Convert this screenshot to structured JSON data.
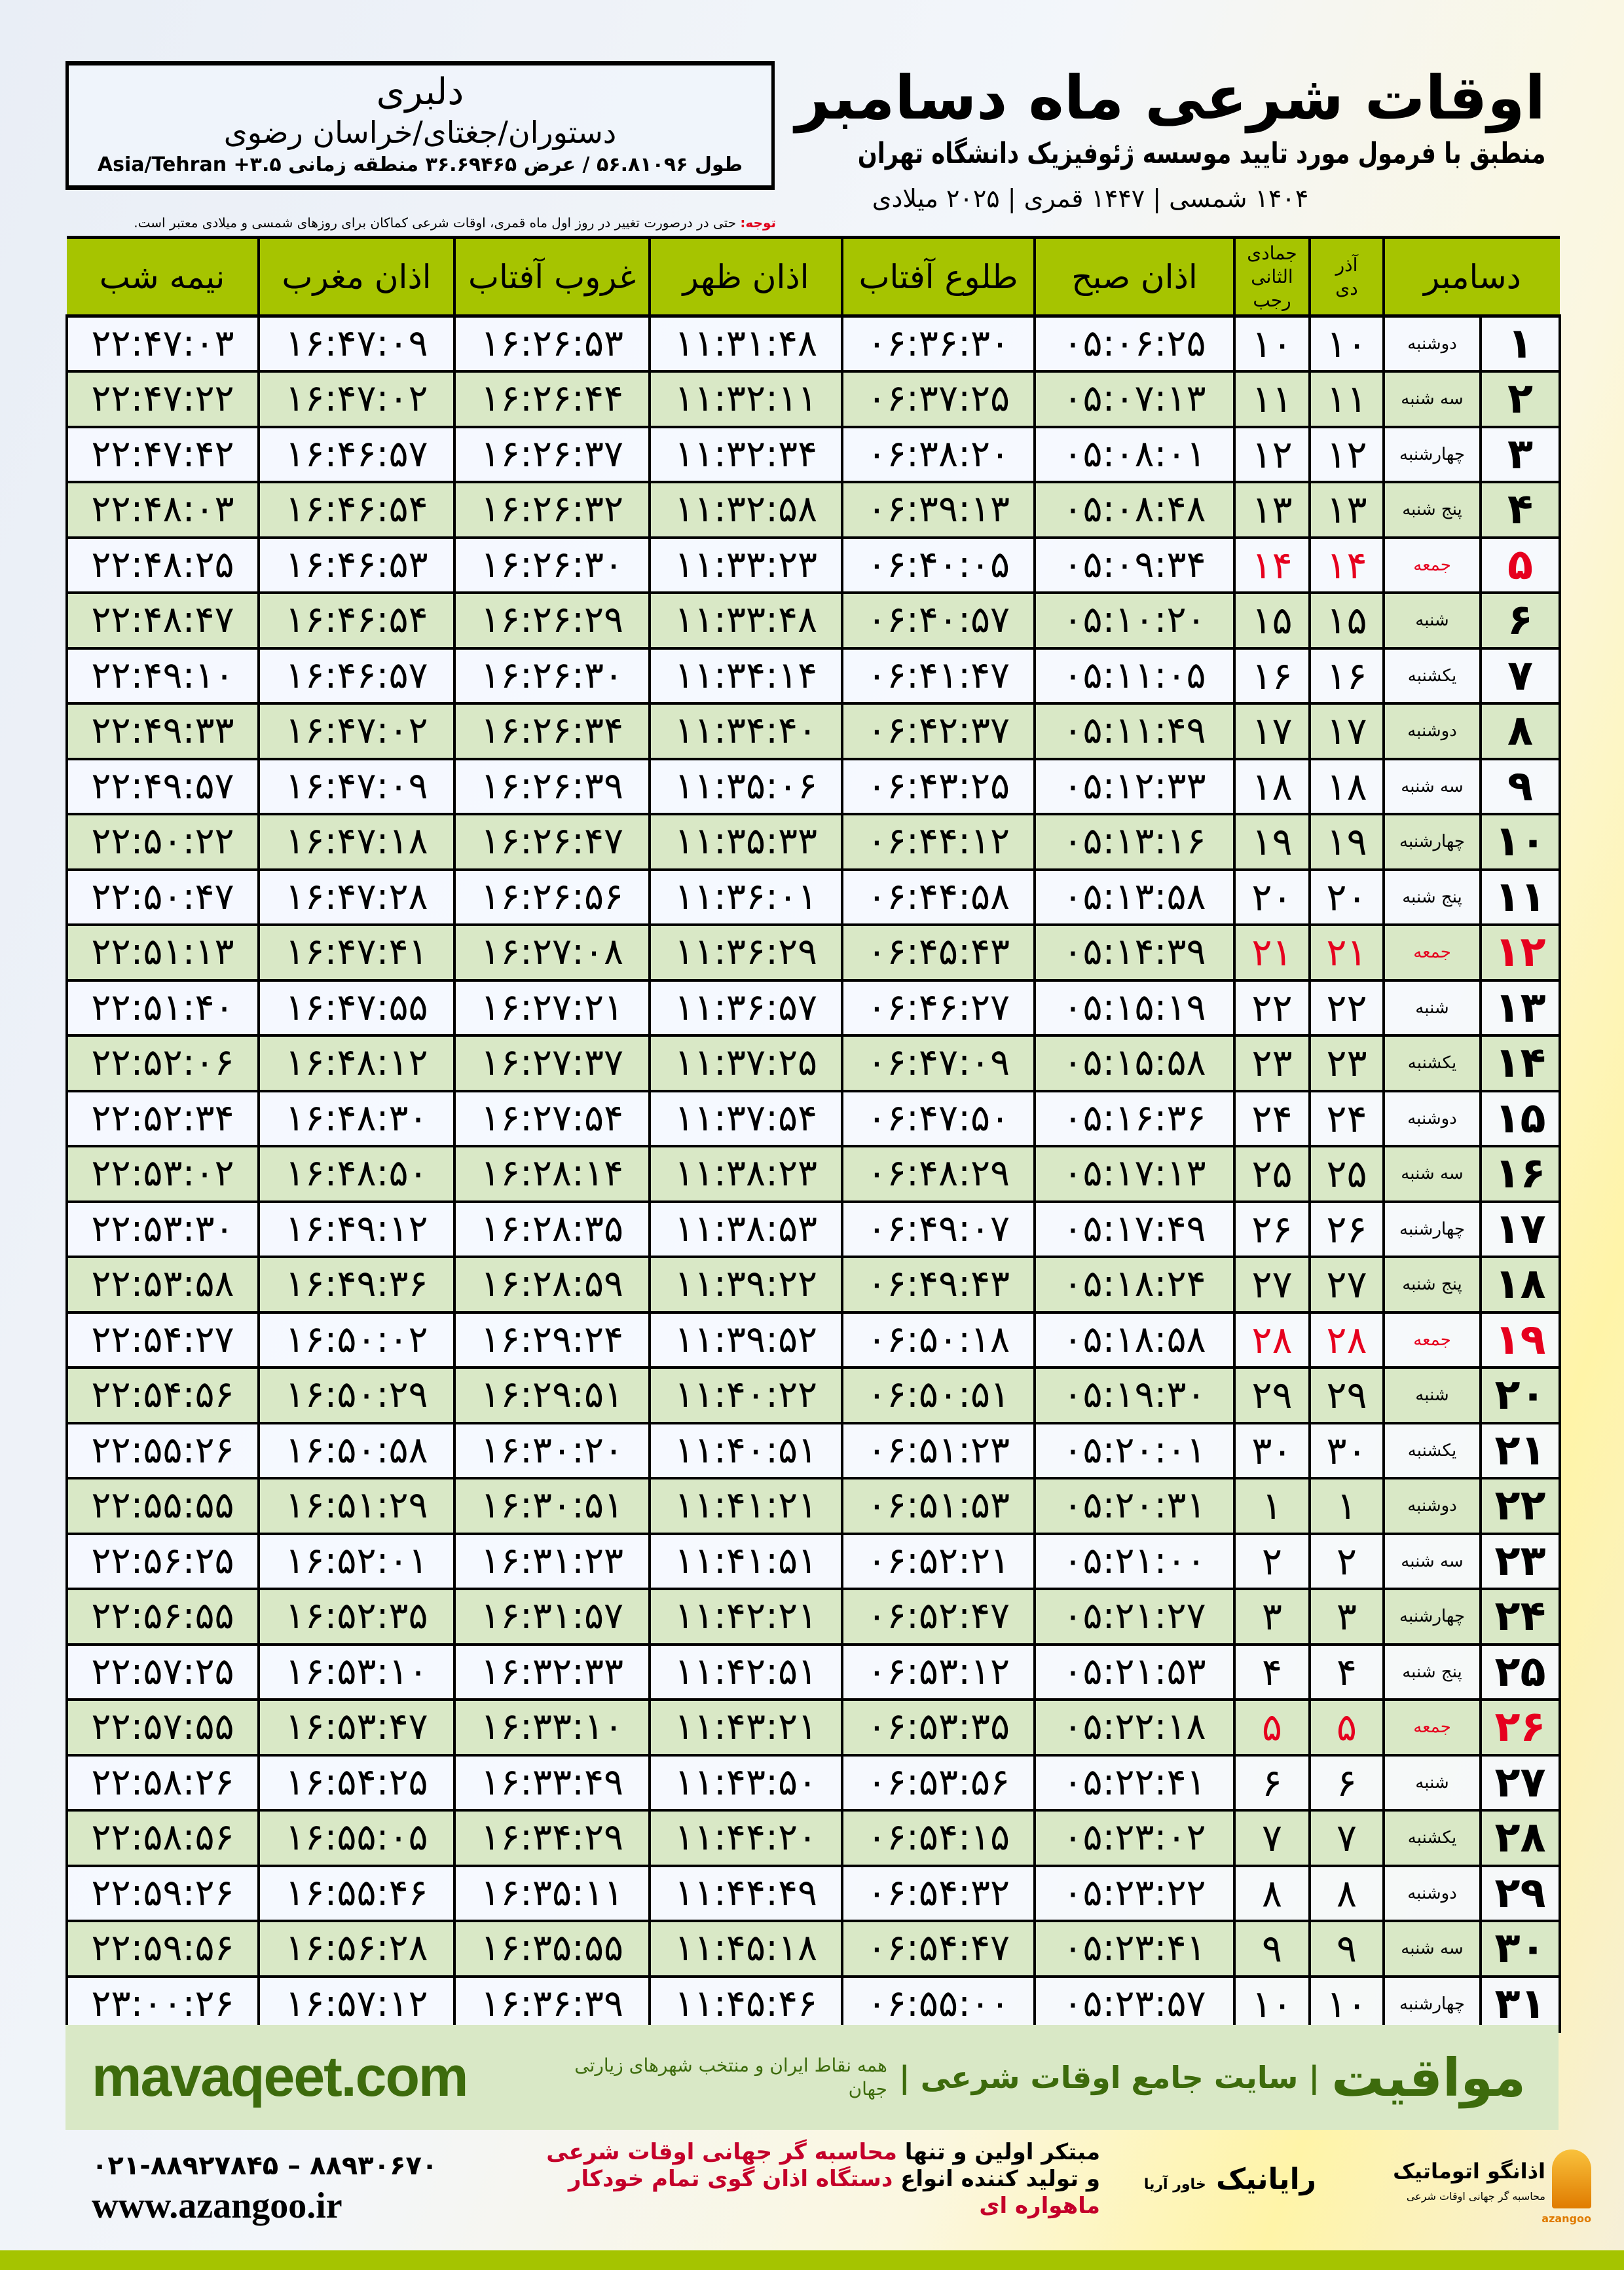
{
  "info": {
    "city": "دلبری",
    "region": "دستوران/جغتای/خراسان رضوی",
    "coords": "طول ۵۶.۸۱۰۹۶ / عرض ۳۶.۶۹۴۶۵ منطقه زمانی ۳.۵+ Asia/Tehran"
  },
  "header": {
    "title": "اوقات شرعی ماه دسامبر",
    "subtitle": "منطبق با فرمول مورد تایید موسسه ژئوفیزیک دانشگاه تهران",
    "dates": "۱۴۰۴ شمسی | ۱۴۴۷ قمری | ۲۰۲۵ میلادی"
  },
  "note": {
    "label": "توجه:",
    "text": " حتی در درصورت تغییر در روز اول ماه قمری، اوقات شرعی کماکان برای روزهای شمسی و میلادی معتبر است."
  },
  "columns": {
    "month": "دسامبر",
    "persian_top": "آذر",
    "persian_bottom": "دی",
    "hijri_top": "جمادی الثانی",
    "hijri_bottom": "رجب",
    "fajr": "اذان صبح",
    "sunrise": "طلوع آفتاب",
    "dhuhr": "اذان ظهر",
    "sunset": "غروب آفتاب",
    "maghrib": "اذان مغرب",
    "midnight": "نیمه شب"
  },
  "colors": {
    "header_green": "#a6c400",
    "row_green": "#d9e8c6",
    "friday_red": "#e6001e",
    "brand_green": "#3d6b0c"
  },
  "rows": [
    [
      "۱",
      "دوشنبه",
      "۱۰",
      "۱۰",
      "۰۵:۰۶:۲۵",
      "۰۶:۳۶:۳۰",
      "۱۱:۳۱:۴۸",
      "۱۶:۲۶:۵۳",
      "۱۶:۴۷:۰۹",
      "۲۲:۴۷:۰۳"
    ],
    [
      "۲",
      "سه شنبه",
      "۱۱",
      "۱۱",
      "۰۵:۰۷:۱۳",
      "۰۶:۳۷:۲۵",
      "۱۱:۳۲:۱۱",
      "۱۶:۲۶:۴۴",
      "۱۶:۴۷:۰۲",
      "۲۲:۴۷:۲۲"
    ],
    [
      "۳",
      "چهارشنبه",
      "۱۲",
      "۱۲",
      "۰۵:۰۸:۰۱",
      "۰۶:۳۸:۲۰",
      "۱۱:۳۲:۳۴",
      "۱۶:۲۶:۳۷",
      "۱۶:۴۶:۵۷",
      "۲۲:۴۷:۴۲"
    ],
    [
      "۴",
      "پنج شنبه",
      "۱۳",
      "۱۳",
      "۰۵:۰۸:۴۸",
      "۰۶:۳۹:۱۳",
      "۱۱:۳۲:۵۸",
      "۱۶:۲۶:۳۲",
      "۱۶:۴۶:۵۴",
      "۲۲:۴۸:۰۳"
    ],
    [
      "۵",
      "جمعه",
      "۱۴",
      "۱۴",
      "۰۵:۰۹:۳۴",
      "۰۶:۴۰:۰۵",
      "۱۱:۳۳:۲۳",
      "۱۶:۲۶:۳۰",
      "۱۶:۴۶:۵۳",
      "۲۲:۴۸:۲۵"
    ],
    [
      "۶",
      "شنبه",
      "۱۵",
      "۱۵",
      "۰۵:۱۰:۲۰",
      "۰۶:۴۰:۵۷",
      "۱۱:۳۳:۴۸",
      "۱۶:۲۶:۲۹",
      "۱۶:۴۶:۵۴",
      "۲۲:۴۸:۴۷"
    ],
    [
      "۷",
      "یکشنبه",
      "۱۶",
      "۱۶",
      "۰۵:۱۱:۰۵",
      "۰۶:۴۱:۴۷",
      "۱۱:۳۴:۱۴",
      "۱۶:۲۶:۳۰",
      "۱۶:۴۶:۵۷",
      "۲۲:۴۹:۱۰"
    ],
    [
      "۸",
      "دوشنبه",
      "۱۷",
      "۱۷",
      "۰۵:۱۱:۴۹",
      "۰۶:۴۲:۳۷",
      "۱۱:۳۴:۴۰",
      "۱۶:۲۶:۳۴",
      "۱۶:۴۷:۰۲",
      "۲۲:۴۹:۳۳"
    ],
    [
      "۹",
      "سه شنبه",
      "۱۸",
      "۱۸",
      "۰۵:۱۲:۳۳",
      "۰۶:۴۳:۲۵",
      "۱۱:۳۵:۰۶",
      "۱۶:۲۶:۳۹",
      "۱۶:۴۷:۰۹",
      "۲۲:۴۹:۵۷"
    ],
    [
      "۱۰",
      "چهارشنبه",
      "۱۹",
      "۱۹",
      "۰۵:۱۳:۱۶",
      "۰۶:۴۴:۱۲",
      "۱۱:۳۵:۳۳",
      "۱۶:۲۶:۴۷",
      "۱۶:۴۷:۱۸",
      "۲۲:۵۰:۲۲"
    ],
    [
      "۱۱",
      "پنج شنبه",
      "۲۰",
      "۲۰",
      "۰۵:۱۳:۵۸",
      "۰۶:۴۴:۵۸",
      "۱۱:۳۶:۰۱",
      "۱۶:۲۶:۵۶",
      "۱۶:۴۷:۲۸",
      "۲۲:۵۰:۴۷"
    ],
    [
      "۱۲",
      "جمعه",
      "۲۱",
      "۲۱",
      "۰۵:۱۴:۳۹",
      "۰۶:۴۵:۴۳",
      "۱۱:۳۶:۲۹",
      "۱۶:۲۷:۰۸",
      "۱۶:۴۷:۴۱",
      "۲۲:۵۱:۱۳"
    ],
    [
      "۱۳",
      "شنبه",
      "۲۲",
      "۲۲",
      "۰۵:۱۵:۱۹",
      "۰۶:۴۶:۲۷",
      "۱۱:۳۶:۵۷",
      "۱۶:۲۷:۲۱",
      "۱۶:۴۷:۵۵",
      "۲۲:۵۱:۴۰"
    ],
    [
      "۱۴",
      "یکشنبه",
      "۲۳",
      "۲۳",
      "۰۵:۱۵:۵۸",
      "۰۶:۴۷:۰۹",
      "۱۱:۳۷:۲۵",
      "۱۶:۲۷:۳۷",
      "۱۶:۴۸:۱۲",
      "۲۲:۵۲:۰۶"
    ],
    [
      "۱۵",
      "دوشنبه",
      "۲۴",
      "۲۴",
      "۰۵:۱۶:۳۶",
      "۰۶:۴۷:۵۰",
      "۱۱:۳۷:۵۴",
      "۱۶:۲۷:۵۴",
      "۱۶:۴۸:۳۰",
      "۲۲:۵۲:۳۴"
    ],
    [
      "۱۶",
      "سه شنبه",
      "۲۵",
      "۲۵",
      "۰۵:۱۷:۱۳",
      "۰۶:۴۸:۲۹",
      "۱۱:۳۸:۲۳",
      "۱۶:۲۸:۱۴",
      "۱۶:۴۸:۵۰",
      "۲۲:۵۳:۰۲"
    ],
    [
      "۱۷",
      "چهارشنبه",
      "۲۶",
      "۲۶",
      "۰۵:۱۷:۴۹",
      "۰۶:۴۹:۰۷",
      "۱۱:۳۸:۵۳",
      "۱۶:۲۸:۳۵",
      "۱۶:۴۹:۱۲",
      "۲۲:۵۳:۳۰"
    ],
    [
      "۱۸",
      "پنج شنبه",
      "۲۷",
      "۲۷",
      "۰۵:۱۸:۲۴",
      "۰۶:۴۹:۴۳",
      "۱۱:۳۹:۲۲",
      "۱۶:۲۸:۵۹",
      "۱۶:۴۹:۳۶",
      "۲۲:۵۳:۵۸"
    ],
    [
      "۱۹",
      "جمعه",
      "۲۸",
      "۲۸",
      "۰۵:۱۸:۵۸",
      "۰۶:۵۰:۱۸",
      "۱۱:۳۹:۵۲",
      "۱۶:۲۹:۲۴",
      "۱۶:۵۰:۰۲",
      "۲۲:۵۴:۲۷"
    ],
    [
      "۲۰",
      "شنبه",
      "۲۹",
      "۲۹",
      "۰۵:۱۹:۳۰",
      "۰۶:۵۰:۵۱",
      "۱۱:۴۰:۲۲",
      "۱۶:۲۹:۵۱",
      "۱۶:۵۰:۲۹",
      "۲۲:۵۴:۵۶"
    ],
    [
      "۲۱",
      "یکشنبه",
      "۳۰",
      "۳۰",
      "۰۵:۲۰:۰۱",
      "۰۶:۵۱:۲۳",
      "۱۱:۴۰:۵۱",
      "۱۶:۳۰:۲۰",
      "۱۶:۵۰:۵۸",
      "۲۲:۵۵:۲۶"
    ],
    [
      "۲۲",
      "دوشنبه",
      "۱",
      "۱",
      "۰۵:۲۰:۳۱",
      "۰۶:۵۱:۵۳",
      "۱۱:۴۱:۲۱",
      "۱۶:۳۰:۵۱",
      "۱۶:۵۱:۲۹",
      "۲۲:۵۵:۵۵"
    ],
    [
      "۲۳",
      "سه شنبه",
      "۲",
      "۲",
      "۰۵:۲۱:۰۰",
      "۰۶:۵۲:۲۱",
      "۱۱:۴۱:۵۱",
      "۱۶:۳۱:۲۳",
      "۱۶:۵۲:۰۱",
      "۲۲:۵۶:۲۵"
    ],
    [
      "۲۴",
      "چهارشنبه",
      "۳",
      "۳",
      "۰۵:۲۱:۲۷",
      "۰۶:۵۲:۴۷",
      "۱۱:۴۲:۲۱",
      "۱۶:۳۱:۵۷",
      "۱۶:۵۲:۳۵",
      "۲۲:۵۶:۵۵"
    ],
    [
      "۲۵",
      "پنج شنبه",
      "۴",
      "۴",
      "۰۵:۲۱:۵۳",
      "۰۶:۵۳:۱۲",
      "۱۱:۴۲:۵۱",
      "۱۶:۳۲:۳۳",
      "۱۶:۵۳:۱۰",
      "۲۲:۵۷:۲۵"
    ],
    [
      "۲۶",
      "جمعه",
      "۵",
      "۵",
      "۰۵:۲۲:۱۸",
      "۰۶:۵۳:۳۵",
      "۱۱:۴۳:۲۱",
      "۱۶:۳۳:۱۰",
      "۱۶:۵۳:۴۷",
      "۲۲:۵۷:۵۵"
    ],
    [
      "۲۷",
      "شنبه",
      "۶",
      "۶",
      "۰۵:۲۲:۴۱",
      "۰۶:۵۳:۵۶",
      "۱۱:۴۳:۵۰",
      "۱۶:۳۳:۴۹",
      "۱۶:۵۴:۲۵",
      "۲۲:۵۸:۲۶"
    ],
    [
      "۲۸",
      "یکشنبه",
      "۷",
      "۷",
      "۰۵:۲۳:۰۲",
      "۰۶:۵۴:۱۵",
      "۱۱:۴۴:۲۰",
      "۱۶:۳۴:۲۹",
      "۱۶:۵۵:۰۵",
      "۲۲:۵۸:۵۶"
    ],
    [
      "۲۹",
      "دوشنبه",
      "۸",
      "۸",
      "۰۵:۲۳:۲۲",
      "۰۶:۵۴:۳۲",
      "۱۱:۴۴:۴۹",
      "۱۶:۳۵:۱۱",
      "۱۶:۵۵:۴۶",
      "۲۲:۵۹:۲۶"
    ],
    [
      "۳۰",
      "سه شنبه",
      "۹",
      "۹",
      "۰۵:۲۳:۴۱",
      "۰۶:۵۴:۴۷",
      "۱۱:۴۵:۱۸",
      "۱۶:۳۵:۵۵",
      "۱۶:۵۶:۲۸",
      "۲۲:۵۹:۵۶"
    ],
    [
      "۳۱",
      "چهارشنبه",
      "۱۰",
      "۱۰",
      "۰۵:۲۳:۵۷",
      "۰۶:۵۵:۰۰",
      "۱۱:۴۵:۴۶",
      "۱۶:۳۶:۳۹",
      "۱۶:۵۷:۱۲",
      "۲۳:۰۰:۲۶"
    ]
  ],
  "friday_label": "جمعه",
  "band": {
    "url": "mavaqeet.com",
    "logo": "مواقیت",
    "site": "| سایت جامع اوقات شرعی |",
    "sub": "همه نقاط ایران و منتخب شهرهای زیارتی جهان"
  },
  "footer": {
    "phone": "۰۲۱-۸۸۹۲۷۸۴۵ – ۸۸۹۳۰۶۷۰",
    "www": "www.azangoo.ir",
    "line1_a": "مبتکر اولین و تنها ",
    "line1_b": "محاسبه گر جهانی اوقات شرعی",
    "line2_a": "و تولید کننده انواع ",
    "line2_b": "دستگاه اذان گوی تمام خودکار ماهواره ای",
    "rayanik": "رایانیک",
    "rayanik_sub": "خاور آریا",
    "azangoo_name": "اذانگو اتوماتیک",
    "azangoo_sub": "محاسبه گر جهانی اوقات شرعی",
    "azangoo_en": "azangoo"
  }
}
